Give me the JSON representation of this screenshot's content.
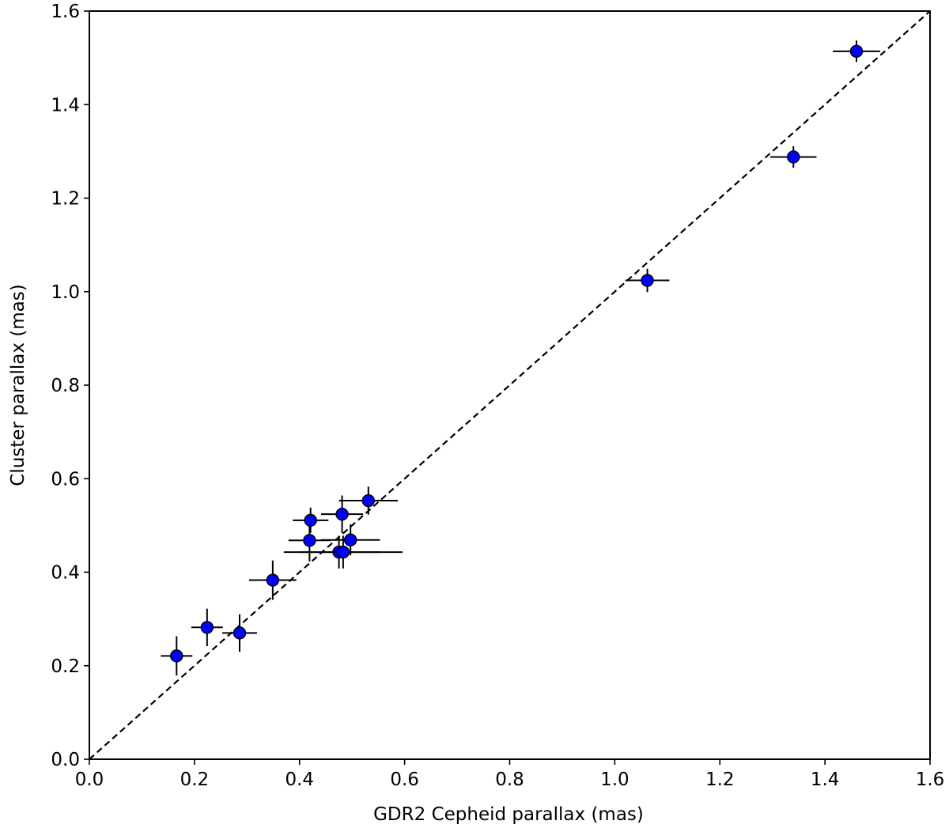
{
  "chart_data": {
    "type": "scatter",
    "xlabel": "GDR2 Cepheid parallax (mas)",
    "ylabel": "Cluster parallax (mas)",
    "xlim": [
      0.0,
      1.6
    ],
    "ylim": [
      0.0,
      1.6
    ],
    "xticks": [
      "0.0",
      "0.2",
      "0.4",
      "0.6",
      "0.8",
      "1.0",
      "1.2",
      "1.4",
      "1.6"
    ],
    "yticks": [
      "0.0",
      "0.2",
      "0.4",
      "0.6",
      "0.8",
      "1.0",
      "1.2",
      "1.4",
      "1.6"
    ],
    "grid": false,
    "reference_line": {
      "style": "dashed",
      "color": "#000000",
      "from": [
        0.0,
        0.0
      ],
      "to": [
        1.6,
        1.6
      ]
    },
    "marker_color": "#0000ff",
    "errorbar_color": "#000000",
    "points": [
      {
        "x": 0.166,
        "y": 0.221,
        "xerr": 0.03,
        "yerr": 0.042
      },
      {
        "x": 0.224,
        "y": 0.282,
        "xerr": 0.03,
        "yerr": 0.04
      },
      {
        "x": 0.286,
        "y": 0.27,
        "xerr": 0.033,
        "yerr": 0.04
      },
      {
        "x": 0.349,
        "y": 0.383,
        "xerr": 0.045,
        "yerr": 0.042
      },
      {
        "x": 0.419,
        "y": 0.468,
        "xerr": 0.04,
        "yerr": 0.045
      },
      {
        "x": 0.421,
        "y": 0.511,
        "xerr": 0.034,
        "yerr": 0.027
      },
      {
        "x": 0.475,
        "y": 0.443,
        "xerr": 0.076,
        "yerr": 0.035
      },
      {
        "x": 0.483,
        "y": 0.443,
        "xerr": 0.113,
        "yerr": 0.035
      },
      {
        "x": 0.481,
        "y": 0.524,
        "xerr": 0.04,
        "yerr": 0.04
      },
      {
        "x": 0.497,
        "y": 0.469,
        "xerr": 0.056,
        "yerr": 0.033
      },
      {
        "x": 0.531,
        "y": 0.553,
        "xerr": 0.056,
        "yerr": 0.03
      },
      {
        "x": 1.062,
        "y": 1.024,
        "xerr": 0.042,
        "yerr": 0.025
      },
      {
        "x": 1.34,
        "y": 1.288,
        "xerr": 0.044,
        "yerr": 0.023
      },
      {
        "x": 1.46,
        "y": 1.514,
        "xerr": 0.045,
        "yerr": 0.023
      }
    ]
  }
}
